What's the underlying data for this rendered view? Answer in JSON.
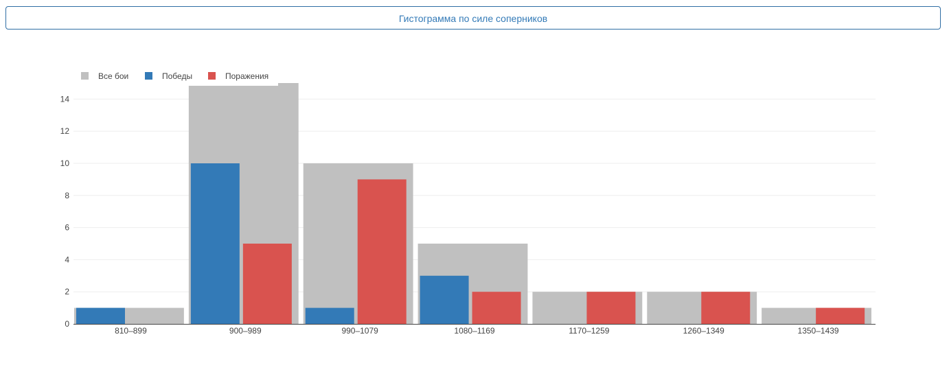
{
  "toggle_button": {
    "label": "Гистограмма по силе соперников"
  },
  "chart_data": {
    "type": "bar",
    "categories": [
      "810–899",
      "900–989",
      "990–1079",
      "1080–1169",
      "1170–1259",
      "1260–1349",
      "1350–1439"
    ],
    "series": [
      {
        "name": "Все бои",
        "values": [
          1,
          15,
          10,
          5,
          2,
          2,
          1
        ],
        "color": "#c0c0c0"
      },
      {
        "name": "Победы",
        "values": [
          1,
          10,
          1,
          3,
          0,
          0,
          0
        ],
        "color": "#337ab7"
      },
      {
        "name": "Поражения",
        "values": [
          0,
          5,
          9,
          2,
          2,
          2,
          1
        ],
        "color": "#d9534f"
      }
    ],
    "yticks": [
      0,
      2,
      4,
      6,
      8,
      10,
      12,
      14
    ],
    "ylim": [
      0,
      15
    ],
    "grid": true,
    "legend_position": "top-left"
  }
}
